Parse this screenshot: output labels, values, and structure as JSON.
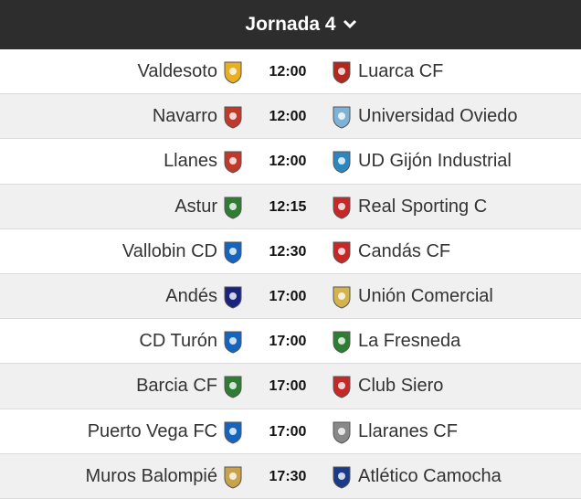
{
  "header": {
    "title": "Jornada 4"
  },
  "matches": [
    {
      "home": "Valdesoto",
      "time": "12:00",
      "away": "Luarca CF"
    },
    {
      "home": "Navarro",
      "time": "12:00",
      "away": "Universidad Oviedo"
    },
    {
      "home": "Llanes",
      "time": "12:00",
      "away": "UD Gijón Industrial"
    },
    {
      "home": "Astur",
      "time": "12:15",
      "away": "Real Sporting C"
    },
    {
      "home": "Vallobin CD",
      "time": "12:30",
      "away": "Candás CF"
    },
    {
      "home": "Andés",
      "time": "17:00",
      "away": "Unión Comercial"
    },
    {
      "home": "CD Turón",
      "time": "17:00",
      "away": "La Fresneda"
    },
    {
      "home": "Barcia CF",
      "time": "17:00",
      "away": "Club Siero"
    },
    {
      "home": "Puerto Vega FC",
      "time": "17:00",
      "away": "Llaranes CF"
    },
    {
      "home": "Muros Balompié",
      "time": "17:30",
      "away": "Atlético Camocha"
    }
  ]
}
